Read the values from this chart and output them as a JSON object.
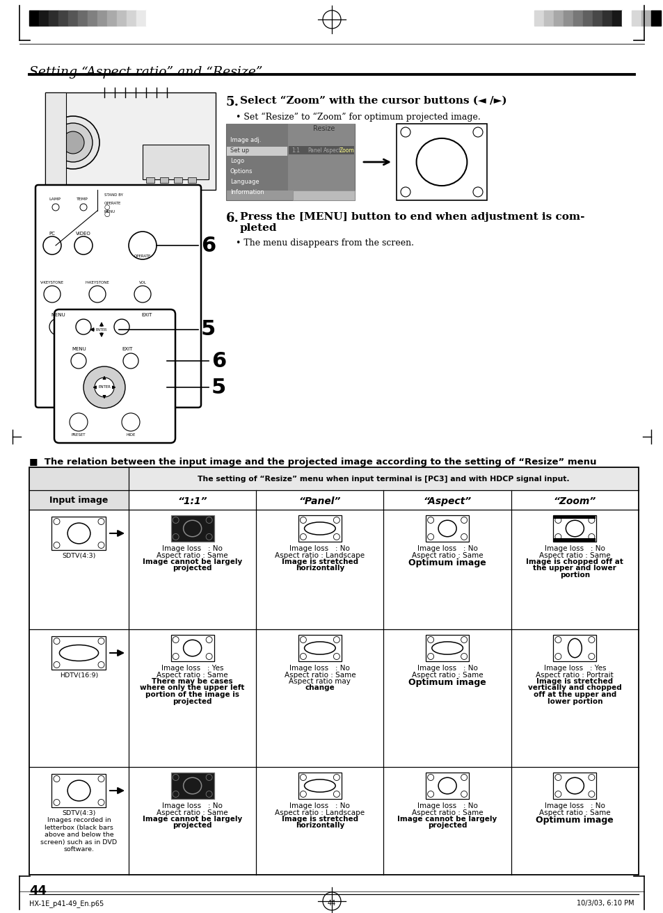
{
  "page_bg": "#ffffff",
  "title_italic": "Setting “Aspect ratio” and “Resize”",
  "step5_text": "Select “Zoom” with the cursor buttons (◄ /►)",
  "step5_sub": "• Set “Resize” to “Zoom” for optimum projected image.",
  "step6_text": "Press the [MENU] button to end when adjustment is com-\npleted",
  "step6_sub": "• The menu disappears from the screen.",
  "table_header": "The setting of “Resize” menu when input terminal is [PC3] and with HDCP signal input.",
  "col_headers": [
    "“1:1”",
    "“Panel”",
    "“Aspect”",
    "“Zoom”"
  ],
  "relation_text": "■  The relation between the input image and the projected image according to the setting of “Resize” menu",
  "page_num": "44",
  "footer_left": "HX-1E_p41-49_En.p65",
  "footer_center": "44",
  "footer_right": "10/3/03, 6:10 PM",
  "cells": [
    [
      "Image loss   : No\nAspect ratio : Same\nImage cannot be largely\nprojected",
      "Image loss   : No\nAspect ratio : Landscape\nImage is stretched\nhorizontally",
      "Image loss   : No\nAspect ratio : Same\nOptimum image",
      "Image loss   : No\nAspect ratio : Same\nImage is chopped off at\nthe upper and lower\nportion"
    ],
    [
      "Image loss   : Yes\nAspect ratio : Same\nThere may be cases\nwhere only the upper left\nportion of the image is\nprojected",
      "Image loss   : No\nAspect ratio : Same\nAspect ratio may\nchange",
      "Image loss   : No\nAspect ratio : Same\nOptimum image",
      "Image loss   : Yes\nAspect ratio : Portrait\nImage is stretched\nvertically and chopped\noff at the upper and\nlower portion"
    ],
    [
      "Image loss   : No\nAspect ratio : Same\nImage cannot be largely\nprojected",
      "Image loss   : No\nAspect ratio : Landscape\nImage is stretched\nhorizontally",
      "Image loss   : No\nAspect ratio : Same\nImage cannot be largely\nprojected",
      "Image loss   : No\nAspect ratio : Same\nOptimum image"
    ]
  ],
  "bar_colors_left": [
    "#000000",
    "#181818",
    "#2d2d2d",
    "#424242",
    "#565656",
    "#6b6b6b",
    "#808080",
    "#959595",
    "#aaaaaa",
    "#bfbfbf",
    "#d4d4d4",
    "#e9e9e9",
    "#ffffff"
  ],
  "bar_colors_right": [
    "#d8d8d8",
    "#c0c0c0",
    "#a8a8a8",
    "#909090",
    "#787878",
    "#606060",
    "#484848",
    "#303030",
    "#181818",
    "#ffffff",
    "#d8d8d8",
    "#b0b0b0",
    "#000000"
  ]
}
